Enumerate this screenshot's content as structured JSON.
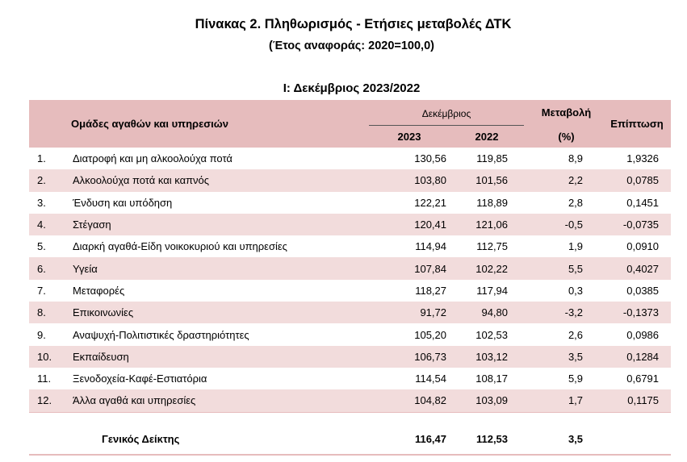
{
  "title": "Πίνακας 2. Πληθωρισμός - Ετήσιες μεταβολές ΔΤΚ",
  "subtitle": "(Έτος αναφοράς: 2020=100,0)",
  "section_title": "Ι: Δεκέμβριος 2023/2022",
  "header": {
    "groups_label": "Ομάδες αγαθών και υπηρεσιών",
    "december_label": "Δεκέμβριος",
    "year_1": "2023",
    "year_2": "2022",
    "change_label": "Μεταβολή",
    "change_unit": "(%)",
    "impact_label": "Επίπτωση"
  },
  "rows": [
    {
      "num": "1.",
      "name": "Διατροφή και μη αλκοολούχα ποτά",
      "v2023": "130,56",
      "v2022": "119,85",
      "change": "8,9",
      "impact": "1,9326"
    },
    {
      "num": "2.",
      "name": "Αλκοολούχα ποτά και καπνός",
      "v2023": "103,80",
      "v2022": "101,56",
      "change": "2,2",
      "impact": "0,0785"
    },
    {
      "num": "3.",
      "name": "Ένδυση και υπόδηση",
      "v2023": "122,21",
      "v2022": "118,89",
      "change": "2,8",
      "impact": "0,1451"
    },
    {
      "num": "4.",
      "name": "Στέγαση",
      "v2023": "120,41",
      "v2022": "121,06",
      "change": "-0,5",
      "impact": "-0,0735"
    },
    {
      "num": "5.",
      "name": "Διαρκή αγαθά-Είδη νοικοκυριού και υπηρεσίες",
      "v2023": "114,94",
      "v2022": "112,75",
      "change": "1,9",
      "impact": "0,0910"
    },
    {
      "num": "6.",
      "name": "Υγεία",
      "v2023": "107,84",
      "v2022": "102,22",
      "change": "5,5",
      "impact": "0,4027"
    },
    {
      "num": "7.",
      "name": "Μεταφορές",
      "v2023": "118,27",
      "v2022": "117,94",
      "change": "0,3",
      "impact": "0,0385"
    },
    {
      "num": "8.",
      "name": "Επικοινωνίες",
      "v2023": "91,72",
      "v2022": "94,80",
      "change": "-3,2",
      "impact": "-0,1373"
    },
    {
      "num": "9.",
      "name": "Αναψυχή-Πολιτιστικές δραστηριότητες",
      "v2023": "105,20",
      "v2022": "102,53",
      "change": "2,6",
      "impact": "0,0986"
    },
    {
      "num": "10.",
      "name": "Εκπαίδευση",
      "v2023": "106,73",
      "v2022": "103,12",
      "change": "3,5",
      "impact": "0,1284"
    },
    {
      "num": "11.",
      "name": "Ξενοδοχεία-Καφέ-Εστιατόρια",
      "v2023": "114,54",
      "v2022": "108,17",
      "change": "5,9",
      "impact": "0,6791"
    },
    {
      "num": "12.",
      "name": "Άλλα αγαθά και υπηρεσίες",
      "v2023": "104,82",
      "v2022": "103,09",
      "change": "1,7",
      "impact": "0,1175"
    }
  ],
  "total": {
    "name": "Γενικός Δείκτης",
    "v2023": "116,47",
    "v2022": "112,53",
    "change": "3,5"
  },
  "colors": {
    "header_bg": "#e6bcbd",
    "alt_row_bg": "#f2dcdc"
  }
}
